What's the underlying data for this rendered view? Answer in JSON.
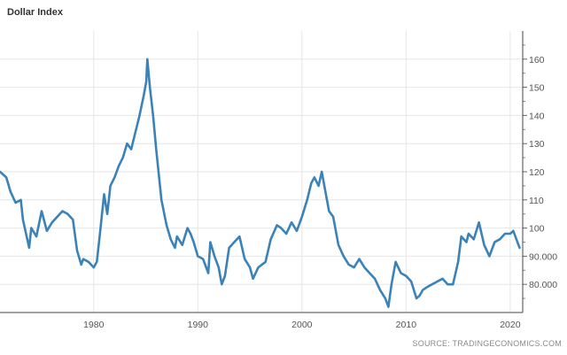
{
  "chart_data": {
    "type": "line",
    "title": "Dollar Index",
    "source": "SOURCE: TRADINGECONOMICS.COM",
    "xlabel": "",
    "ylabel": "",
    "xlim": [
      1971,
      2021.2
    ],
    "ylim": [
      70,
      170
    ],
    "x_ticks": [
      1980,
      1990,
      2000,
      2010,
      2020
    ],
    "x_tick_labels": [
      "1980",
      "1990",
      "2000",
      "2010",
      "2020"
    ],
    "y_ticks": [
      80,
      90,
      100,
      110,
      120,
      130,
      140,
      150,
      160
    ],
    "y_tick_labels": [
      "80.000",
      "90.000",
      "100",
      "110",
      "120",
      "130",
      "140",
      "150",
      "160"
    ],
    "y_axis_position": "right",
    "grid": true,
    "line_color": "#3b82b8",
    "x": [
      1971.0,
      1971.6,
      1972.0,
      1972.5,
      1973.0,
      1973.2,
      1973.5,
      1973.8,
      1974.0,
      1974.5,
      1975.0,
      1975.5,
      1976.0,
      1976.5,
      1977.0,
      1977.5,
      1978.0,
      1978.4,
      1978.8,
      1979.0,
      1979.5,
      1980.0,
      1980.3,
      1980.6,
      1981.0,
      1981.3,
      1981.6,
      1982.0,
      1982.4,
      1982.8,
      1983.2,
      1983.6,
      1984.0,
      1984.4,
      1984.8,
      1985.05,
      1985.15,
      1985.4,
      1985.7,
      1986.0,
      1986.5,
      1987.0,
      1987.4,
      1987.8,
      1988.0,
      1988.5,
      1989.0,
      1989.3,
      1989.6,
      1990.0,
      1990.5,
      1991.0,
      1991.2,
      1991.6,
      1992.0,
      1992.3,
      1992.6,
      1993.0,
      1993.5,
      1994.0,
      1994.5,
      1995.0,
      1995.3,
      1995.8,
      1996.5,
      1997.0,
      1997.6,
      1998.0,
      1998.5,
      1999.0,
      1999.5,
      2000.0,
      2000.5,
      2000.9,
      2001.2,
      2001.6,
      2001.9,
      2002.2,
      2002.6,
      2003.0,
      2003.5,
      2004.0,
      2004.5,
      2005.0,
      2005.5,
      2006.0,
      2006.5,
      2007.0,
      2007.5,
      2008.0,
      2008.3,
      2008.6,
      2009.0,
      2009.5,
      2010.0,
      2010.5,
      2011.0,
      2011.3,
      2011.6,
      2012.0,
      2012.5,
      2013.0,
      2013.5,
      2014.0,
      2014.5,
      2015.0,
      2015.3,
      2015.8,
      2016.0,
      2016.5,
      2017.0,
      2017.5,
      2018.0,
      2018.5,
      2019.0,
      2019.5,
      2020.0,
      2020.3,
      2020.6,
      2020.9
    ],
    "values": [
      120,
      118,
      113,
      109,
      110,
      103,
      98,
      93,
      100,
      97,
      106,
      99,
      102,
      104,
      106,
      105,
      103,
      92,
      87,
      89,
      88,
      86,
      88,
      98,
      112,
      105,
      115,
      118,
      122,
      125,
      130,
      128,
      134,
      140,
      147,
      152,
      160,
      150,
      140,
      128,
      110,
      101,
      96,
      93,
      97,
      94,
      100,
      98,
      95,
      90,
      89,
      84,
      95,
      90,
      86,
      80,
      83,
      93,
      95,
      97,
      89,
      86,
      82,
      86,
      88,
      96,
      101,
      100,
      98,
      102,
      99,
      104,
      110,
      116,
      118,
      115,
      120,
      114,
      106,
      104,
      94,
      90,
      87,
      86,
      89,
      86,
      84,
      82,
      78,
      75,
      72,
      80,
      88,
      84,
      83,
      81,
      75,
      76,
      78,
      79,
      80,
      81,
      82,
      80,
      80,
      88,
      97,
      95,
      98,
      96,
      102,
      94,
      90,
      95,
      96,
      98,
      98,
      99,
      96,
      93
    ]
  }
}
